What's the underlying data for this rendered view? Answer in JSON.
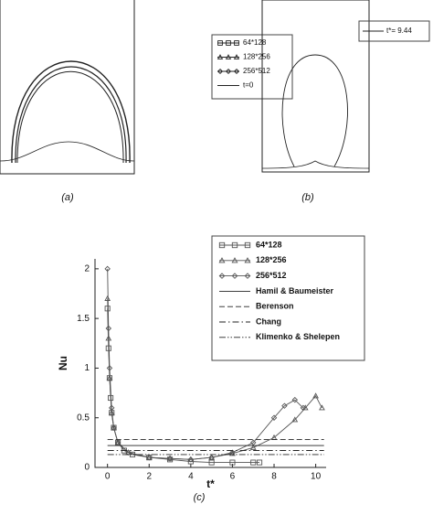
{
  "chart_data": [
    {
      "type": "interface",
      "caption": "(a)",
      "series": [
        {
          "name": "64*128",
          "marker": "square"
        },
        {
          "name": "128*256",
          "marker": "triangle"
        },
        {
          "name": "256*512",
          "marker": "diamond"
        },
        {
          "name": "t=0",
          "marker": "none"
        }
      ]
    },
    {
      "type": "interface",
      "caption": "(b)",
      "series": [
        {
          "name": "t*= 9.44",
          "marker": "none"
        }
      ]
    },
    {
      "type": "line",
      "caption": "(c)",
      "xlabel": "t*",
      "ylabel": "Nu",
      "xlim": [
        -0.6,
        10.5
      ],
      "ylim": [
        0,
        2.1
      ],
      "xticks": [
        0,
        2,
        4,
        6,
        8,
        10
      ],
      "yticks": [
        0,
        0.5,
        1,
        1.5,
        2
      ],
      "series": [
        {
          "name": "64*128",
          "color": "#555555",
          "marker": "square",
          "dash": "solid",
          "x": [
            0,
            0.05,
            0.1,
            0.15,
            0.2,
            0.3,
            0.5,
            0.8,
            1.2,
            2,
            3,
            4,
            5,
            6,
            7,
            7.3
          ],
          "values": [
            1.6,
            1.2,
            0.9,
            0.7,
            0.55,
            0.4,
            0.25,
            0.17,
            0.13,
            0.1,
            0.08,
            0.06,
            0.05,
            0.05,
            0.05,
            0.05
          ]
        },
        {
          "name": "128*256",
          "color": "#555555",
          "marker": "triangle",
          "dash": "solid",
          "x": [
            0,
            0.05,
            0.1,
            0.2,
            0.3,
            0.5,
            1,
            2,
            3,
            4,
            5,
            6,
            7,
            8,
            9,
            9.5,
            10,
            10.3
          ],
          "values": [
            1.7,
            1.3,
            0.9,
            0.55,
            0.4,
            0.25,
            0.15,
            0.1,
            0.09,
            0.08,
            0.1,
            0.14,
            0.2,
            0.3,
            0.48,
            0.6,
            0.72,
            0.6
          ]
        },
        {
          "name": "256*512",
          "color": "#555555",
          "marker": "diamond",
          "dash": "solid",
          "x": [
            0,
            0.05,
            0.1,
            0.2,
            0.3,
            0.5,
            1,
            2,
            3,
            4,
            5,
            6,
            7,
            8,
            8.5,
            9,
            9.4
          ],
          "values": [
            2,
            1.4,
            1,
            0.6,
            0.4,
            0.25,
            0.15,
            0.1,
            0.09,
            0.08,
            0.1,
            0.15,
            0.25,
            0.5,
            0.62,
            0.68,
            0.6
          ]
        },
        {
          "name": "Hamil & Baumeister",
          "color": "#222222",
          "marker": "none",
          "dash": "solid",
          "x": [
            0,
            10.4
          ],
          "values": [
            0.22,
            0.22
          ]
        },
        {
          "name": "Berenson",
          "color": "#222222",
          "marker": "none",
          "dash": "dash",
          "x": [
            0,
            10.4
          ],
          "values": [
            0.28,
            0.28
          ]
        },
        {
          "name": "Chang",
          "color": "#222222",
          "marker": "none",
          "dash": "dashdot",
          "x": [
            0,
            10.4
          ],
          "values": [
            0.17,
            0.17
          ]
        },
        {
          "name": "Klimenko & Shelepen",
          "color": "#222222",
          "marker": "none",
          "dash": "dashdotdot",
          "x": [
            0,
            10.4
          ],
          "values": [
            0.13,
            0.13
          ]
        }
      ]
    }
  ]
}
